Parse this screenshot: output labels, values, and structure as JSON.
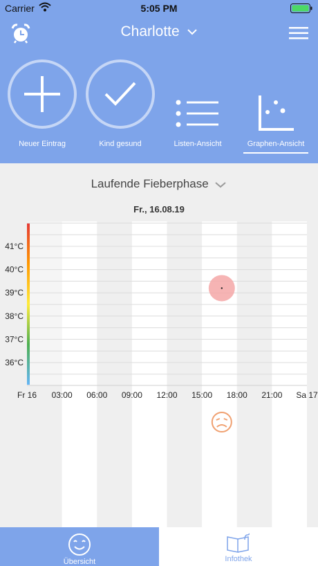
{
  "status": {
    "carrier": "Carrier",
    "time": "5:05 PM"
  },
  "nav": {
    "title": "Charlotte"
  },
  "actions": [
    {
      "label": "Neuer Eintrag",
      "icon": "plus-icon"
    },
    {
      "label": "Kind gesund",
      "icon": "check-icon"
    },
    {
      "label": "Listen-Ansicht",
      "icon": "list-icon"
    },
    {
      "label": "Graphen-Ansicht",
      "icon": "scatter-icon"
    }
  ],
  "phase": {
    "label": "Laufende Fieberphase"
  },
  "chart_data": {
    "type": "scatter",
    "title": "Fr., 16.08.19",
    "y_ticks": [
      "41°C",
      "40°C",
      "39°C",
      "38°C",
      "37°C",
      "36°C"
    ],
    "y_values": [
      41,
      40,
      39,
      38,
      37,
      36
    ],
    "ylim": [
      35,
      42
    ],
    "x_ticks": [
      "Fr 16",
      "03:00",
      "06:00",
      "09:00",
      "12:00",
      "15:00",
      "18:00",
      "21:00",
      "Sa 17"
    ],
    "xlim_hours": [
      0,
      24
    ],
    "points": [
      {
        "x_hour": 16.7,
        "y": 39.2
      }
    ],
    "symptom_markers": [
      {
        "x_hour": 16.7,
        "icon": "sad-face-icon"
      }
    ],
    "colors": {
      "point": "#f4a7a7",
      "symptom": "#f0a070"
    }
  },
  "tabs": [
    {
      "label": "Übersicht",
      "icon": "smiley-icon"
    },
    {
      "label": "Infothek",
      "icon": "book-icon"
    }
  ]
}
